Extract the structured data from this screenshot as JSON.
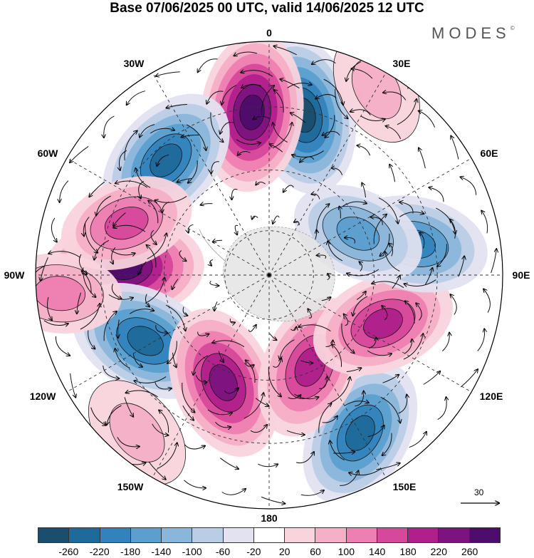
{
  "title": "Base 07/06/2025 00 UTC, valid 14/06/2025 12 UTC",
  "brand": "MODES",
  "brand_mark": "©",
  "longitude_labels": {
    "lon_0": "0",
    "lon_30e": "30E",
    "lon_60e": "60E",
    "lon_90e": "90E",
    "lon_120e": "120E",
    "lon_150e": "150E",
    "lon_180": "180",
    "lon_150w": "150W",
    "lon_120w": "120W",
    "lon_90w": "90W",
    "lon_60w": "60W",
    "lon_30w": "30W"
  },
  "reference_vector": {
    "label": "30",
    "icon": "arrow-right-icon"
  },
  "colorbar": {
    "ticks": [
      "-260",
      "-220",
      "-180",
      "-140",
      "-100",
      "-60",
      "-20",
      "20",
      "60",
      "100",
      "140",
      "180",
      "220",
      "260"
    ],
    "colors": [
      "#1b4e6e",
      "#1e6a9a",
      "#3283bd",
      "#5b9fcf",
      "#8ab6db",
      "#b9cde6",
      "#e2e2f0",
      "#ffffff",
      "#f9d4dd",
      "#f5afc7",
      "#ee7fb2",
      "#d6489b",
      "#b01f8c",
      "#7d1380",
      "#4e0c6c"
    ]
  },
  "anomaly_centers": [
    {
      "lon": 12,
      "r": 0.7,
      "value": -260
    },
    {
      "lon": -6,
      "r": 0.7,
      "value": 260
    },
    {
      "lon": -42,
      "r": 0.66,
      "value": -240
    },
    {
      "lon": -87,
      "r": 0.62,
      "value": 260
    },
    {
      "lon": -118,
      "r": 0.6,
      "value": -250
    },
    {
      "lon": -157,
      "r": 0.5,
      "value": 240
    },
    {
      "lon": 150,
      "r": 0.78,
      "value": -230
    },
    {
      "lon": 156,
      "r": 0.43,
      "value": 200
    },
    {
      "lon": 113,
      "r": 0.53,
      "value": 200
    },
    {
      "lon": 78,
      "r": 0.64,
      "value": -200
    },
    {
      "lon": 65,
      "r": 0.42,
      "value": -150
    },
    {
      "lon": -70,
      "r": 0.65,
      "value": 150
    },
    {
      "lon": -95,
      "r": 0.9,
      "value": 100
    },
    {
      "lon": -140,
      "r": 0.88,
      "value": 80
    },
    {
      "lon": 30,
      "r": 0.92,
      "value": 60
    }
  ]
}
